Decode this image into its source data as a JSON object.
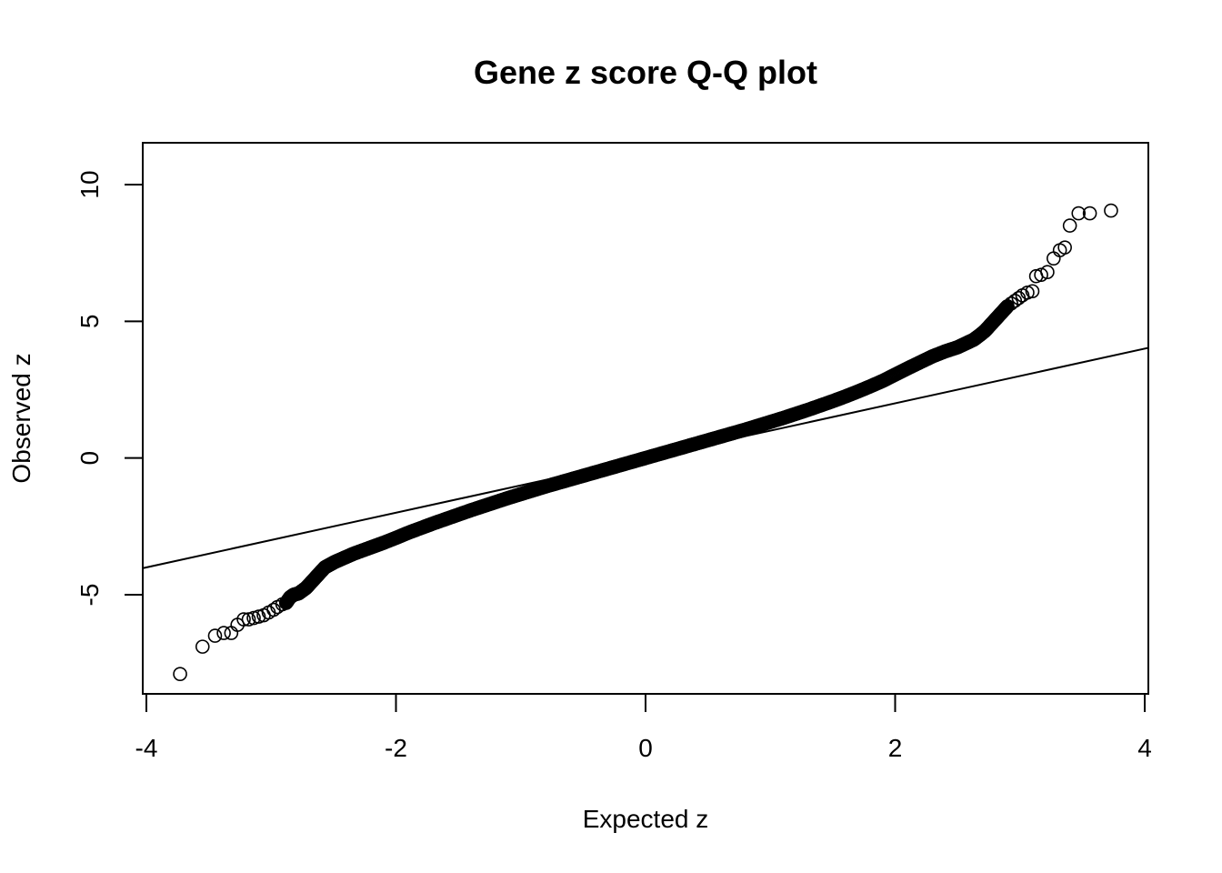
{
  "chart_data": {
    "type": "scatter",
    "title": "Gene z score Q-Q plot",
    "xlabel": "Expected z",
    "ylabel": "Observed z",
    "xlim": [
      -4.0,
      4.0
    ],
    "ylim": [
      -8.6,
      11.5
    ],
    "x_ticks": [
      -4,
      -2,
      0,
      2,
      4
    ],
    "y_ticks": [
      -5,
      0,
      5,
      10
    ],
    "grid": false,
    "legend": "none",
    "reference_line": {
      "slope": 1,
      "intercept": 0
    },
    "points": [
      [
        -3.73,
        -7.9
      ],
      [
        -3.55,
        -6.9
      ],
      [
        -3.45,
        -6.5
      ],
      [
        -3.38,
        -6.4
      ],
      [
        -3.32,
        -6.4
      ],
      [
        -3.27,
        -6.1
      ],
      [
        -3.22,
        -5.9
      ],
      [
        -3.18,
        -5.9
      ],
      [
        -3.14,
        -5.85
      ],
      [
        -3.1,
        -5.8
      ],
      [
        -3.06,
        -5.75
      ],
      [
        -3.02,
        -5.65
      ],
      [
        -2.98,
        -5.55
      ],
      [
        -2.95,
        -5.45
      ],
      [
        -2.91,
        -5.35
      ],
      [
        -2.88,
        -5.3
      ],
      [
        -2.85,
        -5.1
      ],
      [
        -2.82,
        -5.0
      ],
      [
        -2.78,
        -4.95
      ],
      [
        -2.75,
        -4.85
      ],
      [
        -2.72,
        -4.75
      ],
      [
        -2.69,
        -4.6
      ],
      [
        -2.66,
        -4.45
      ],
      [
        -2.63,
        -4.3
      ],
      [
        -2.6,
        -4.15
      ],
      [
        -2.57,
        -4.0
      ],
      [
        -2.53,
        -3.9
      ],
      [
        -2.49,
        -3.8
      ],
      [
        -2.44,
        -3.7
      ],
      [
        -2.39,
        -3.6
      ],
      [
        -2.34,
        -3.5
      ],
      [
        -2.28,
        -3.4
      ],
      [
        -2.22,
        -3.3
      ],
      [
        -2.16,
        -3.2
      ],
      [
        -2.1,
        -3.1
      ],
      [
        -2.0,
        -2.92
      ],
      [
        -1.9,
        -2.73
      ],
      [
        -1.8,
        -2.56
      ],
      [
        -1.7,
        -2.39
      ],
      [
        -1.6,
        -2.23
      ],
      [
        -1.5,
        -2.07
      ],
      [
        -1.4,
        -1.91
      ],
      [
        -1.3,
        -1.76
      ],
      [
        -1.2,
        -1.61
      ],
      [
        -1.1,
        -1.46
      ],
      [
        -1.0,
        -1.32
      ],
      [
        -0.9,
        -1.18
      ],
      [
        -0.8,
        -1.04
      ],
      [
        -0.7,
        -0.91
      ],
      [
        -0.6,
        -0.78
      ],
      [
        -0.5,
        -0.65
      ],
      [
        -0.4,
        -0.52
      ],
      [
        -0.3,
        -0.39
      ],
      [
        -0.2,
        -0.26
      ],
      [
        -0.1,
        -0.13
      ],
      [
        0.0,
        0.0
      ],
      [
        0.1,
        0.13
      ],
      [
        0.2,
        0.26
      ],
      [
        0.3,
        0.39
      ],
      [
        0.4,
        0.52
      ],
      [
        0.5,
        0.65
      ],
      [
        0.6,
        0.78
      ],
      [
        0.7,
        0.91
      ],
      [
        0.8,
        1.04
      ],
      [
        0.9,
        1.18
      ],
      [
        1.0,
        1.32
      ],
      [
        1.1,
        1.46
      ],
      [
        1.2,
        1.61
      ],
      [
        1.3,
        1.76
      ],
      [
        1.4,
        1.92
      ],
      [
        1.5,
        2.08
      ],
      [
        1.6,
        2.25
      ],
      [
        1.7,
        2.43
      ],
      [
        1.8,
        2.62
      ],
      [
        1.9,
        2.82
      ],
      [
        2.0,
        3.05
      ],
      [
        2.1,
        3.28
      ],
      [
        2.2,
        3.5
      ],
      [
        2.3,
        3.72
      ],
      [
        2.4,
        3.9
      ],
      [
        2.5,
        4.05
      ],
      [
        2.57,
        4.2
      ],
      [
        2.63,
        4.33
      ],
      [
        2.68,
        4.5
      ],
      [
        2.72,
        4.65
      ],
      [
        2.75,
        4.8
      ],
      [
        2.78,
        4.95
      ],
      [
        2.81,
        5.1
      ],
      [
        2.84,
        5.25
      ],
      [
        2.87,
        5.4
      ],
      [
        2.9,
        5.55
      ],
      [
        2.93,
        5.65
      ],
      [
        2.96,
        5.75
      ],
      [
        2.99,
        5.85
      ],
      [
        3.02,
        5.95
      ],
      [
        3.06,
        6.05
      ],
      [
        3.1,
        6.1
      ],
      [
        3.13,
        6.65
      ],
      [
        3.17,
        6.7
      ],
      [
        3.22,
        6.8
      ],
      [
        3.27,
        7.3
      ],
      [
        3.32,
        7.6
      ],
      [
        3.36,
        7.7
      ],
      [
        3.4,
        8.5
      ],
      [
        3.47,
        8.95
      ],
      [
        3.56,
        8.95
      ],
      [
        3.73,
        9.05
      ]
    ]
  }
}
